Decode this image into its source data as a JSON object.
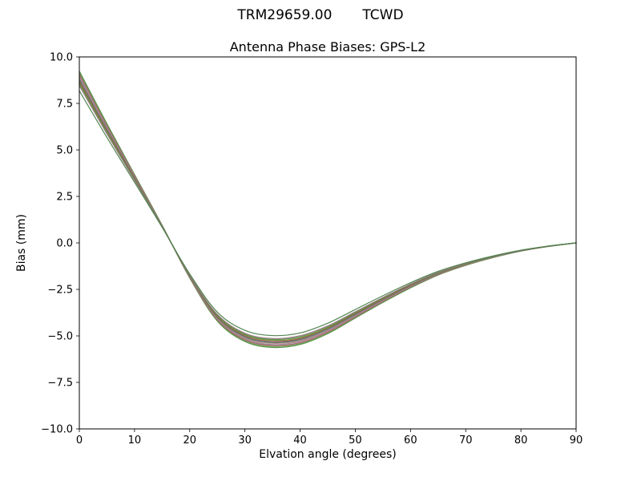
{
  "header": {
    "antenna_type": "TRM29659.00",
    "station": "TCWD"
  },
  "chart_data": {
    "type": "line",
    "title": "Antenna Phase Biases: GPS-L2",
    "xlabel": "Elvation angle (degrees)",
    "ylabel": "Bias (mm)",
    "xlim": [
      0,
      90
    ],
    "ylim": [
      -10,
      10
    ],
    "grid": false,
    "legend": "none",
    "x": [
      0,
      5,
      10,
      15,
      20,
      25,
      30,
      35,
      40,
      45,
      50,
      55,
      60,
      65,
      70,
      75,
      80,
      85,
      90
    ],
    "x_ticks": [
      0,
      10,
      20,
      30,
      40,
      50,
      60,
      70,
      80,
      90
    ],
    "x_tick_labels": [
      "0",
      "10",
      "20",
      "30",
      "40",
      "50",
      "60",
      "70",
      "80",
      "90"
    ],
    "y_ticks": [
      -10,
      -7.5,
      -5,
      -2.5,
      0,
      2.5,
      5,
      7.5,
      10
    ],
    "y_tick_labels": [
      "−10.0",
      "−7.5",
      "−5.0",
      "−2.5",
      "0.0",
      "2.5",
      "5.0",
      "7.5",
      "10.0"
    ],
    "series": [
      {
        "color": "#4d8a3e",
        "values": [
          9.24,
          6.41,
          3.68,
          0.95,
          -1.89,
          -4.2,
          -5.3,
          -5.62,
          -5.46,
          -4.88,
          -4.04,
          -3.2,
          -2.42,
          -1.73,
          -1.21,
          -0.79,
          -0.44,
          -0.19,
          0.0
        ]
      },
      {
        "color": "#6b9a50",
        "values": [
          9.15,
          6.34,
          3.64,
          0.94,
          -1.87,
          -4.16,
          -5.25,
          -5.56,
          -5.41,
          -4.84,
          -4.0,
          -3.17,
          -2.39,
          -1.72,
          -1.2,
          -0.78,
          -0.44,
          -0.19,
          0.0
        ]
      },
      {
        "color": "#b2566c",
        "values": [
          9.06,
          6.28,
          3.61,
          0.93,
          -1.85,
          -4.12,
          -5.2,
          -5.51,
          -5.36,
          -4.79,
          -3.97,
          -3.14,
          -2.37,
          -1.7,
          -1.18,
          -0.77,
          -0.43,
          -0.19,
          0.0
        ]
      },
      {
        "color": "#8c8c8c",
        "values": [
          8.98,
          6.22,
          3.57,
          0.92,
          -1.84,
          -4.08,
          -5.15,
          -5.46,
          -5.3,
          -4.74,
          -3.93,
          -3.11,
          -2.35,
          -1.68,
          -1.17,
          -0.77,
          -0.43,
          -0.18,
          0.0
        ]
      },
      {
        "color": "#c4798f",
        "values": [
          8.89,
          6.16,
          3.54,
          0.91,
          -1.82,
          -4.04,
          -5.1,
          -5.4,
          -5.25,
          -4.7,
          -3.89,
          -3.08,
          -2.32,
          -1.67,
          -1.16,
          -0.76,
          -0.42,
          -0.18,
          0.0
        ]
      },
      {
        "color": "#3f7d45",
        "values": [
          8.8,
          6.1,
          3.5,
          0.9,
          -1.8,
          -4.0,
          -5.05,
          -5.35,
          -5.2,
          -4.65,
          -3.85,
          -3.05,
          -2.3,
          -1.65,
          -1.15,
          -0.75,
          -0.42,
          -0.18,
          0.0
        ]
      },
      {
        "color": "#5b9b9b",
        "values": [
          8.76,
          6.07,
          3.48,
          0.9,
          -1.79,
          -3.98,
          -5.02,
          -5.32,
          -5.17,
          -4.63,
          -3.83,
          -3.03,
          -2.29,
          -1.64,
          -1.14,
          -0.75,
          -0.42,
          -0.18,
          0.0
        ]
      },
      {
        "color": "#a34a5e",
        "values": [
          8.71,
          6.04,
          3.47,
          0.89,
          -1.78,
          -3.96,
          -5.0,
          -5.3,
          -5.15,
          -4.6,
          -3.81,
          -3.02,
          -2.28,
          -1.63,
          -1.14,
          -0.74,
          -0.42,
          -0.18,
          0.0
        ]
      },
      {
        "color": "#6b8e23",
        "values": [
          8.62,
          5.98,
          3.43,
          0.88,
          -1.76,
          -3.92,
          -4.95,
          -5.24,
          -5.1,
          -4.56,
          -3.77,
          -2.99,
          -2.25,
          -1.62,
          -1.13,
          -0.74,
          -0.41,
          -0.18,
          0.0
        ]
      },
      {
        "color": "#578a4a",
        "values": [
          8.54,
          5.92,
          3.4,
          0.87,
          -1.75,
          -3.88,
          -4.9,
          -5.19,
          -5.04,
          -4.51,
          -3.73,
          -2.96,
          -2.23,
          -1.6,
          -1.12,
          -0.73,
          -0.41,
          -0.17,
          0.0
        ]
      },
      {
        "color": "#9b7b85",
        "values": [
          8.45,
          5.86,
          3.36,
          0.86,
          -1.73,
          -3.84,
          -4.85,
          -5.14,
          -4.99,
          -4.46,
          -3.7,
          -2.93,
          -2.21,
          -1.58,
          -1.1,
          -0.72,
          -0.4,
          -0.17,
          0.0
        ]
      },
      {
        "color": "#498049",
        "values": [
          8.18,
          5.67,
          3.26,
          0.84,
          -1.67,
          -3.72,
          -4.7,
          -4.98,
          -4.84,
          -4.32,
          -3.58,
          -2.84,
          -2.14,
          -1.53,
          -1.07,
          -0.7,
          -0.39,
          -0.17,
          0.0
        ]
      }
    ]
  }
}
